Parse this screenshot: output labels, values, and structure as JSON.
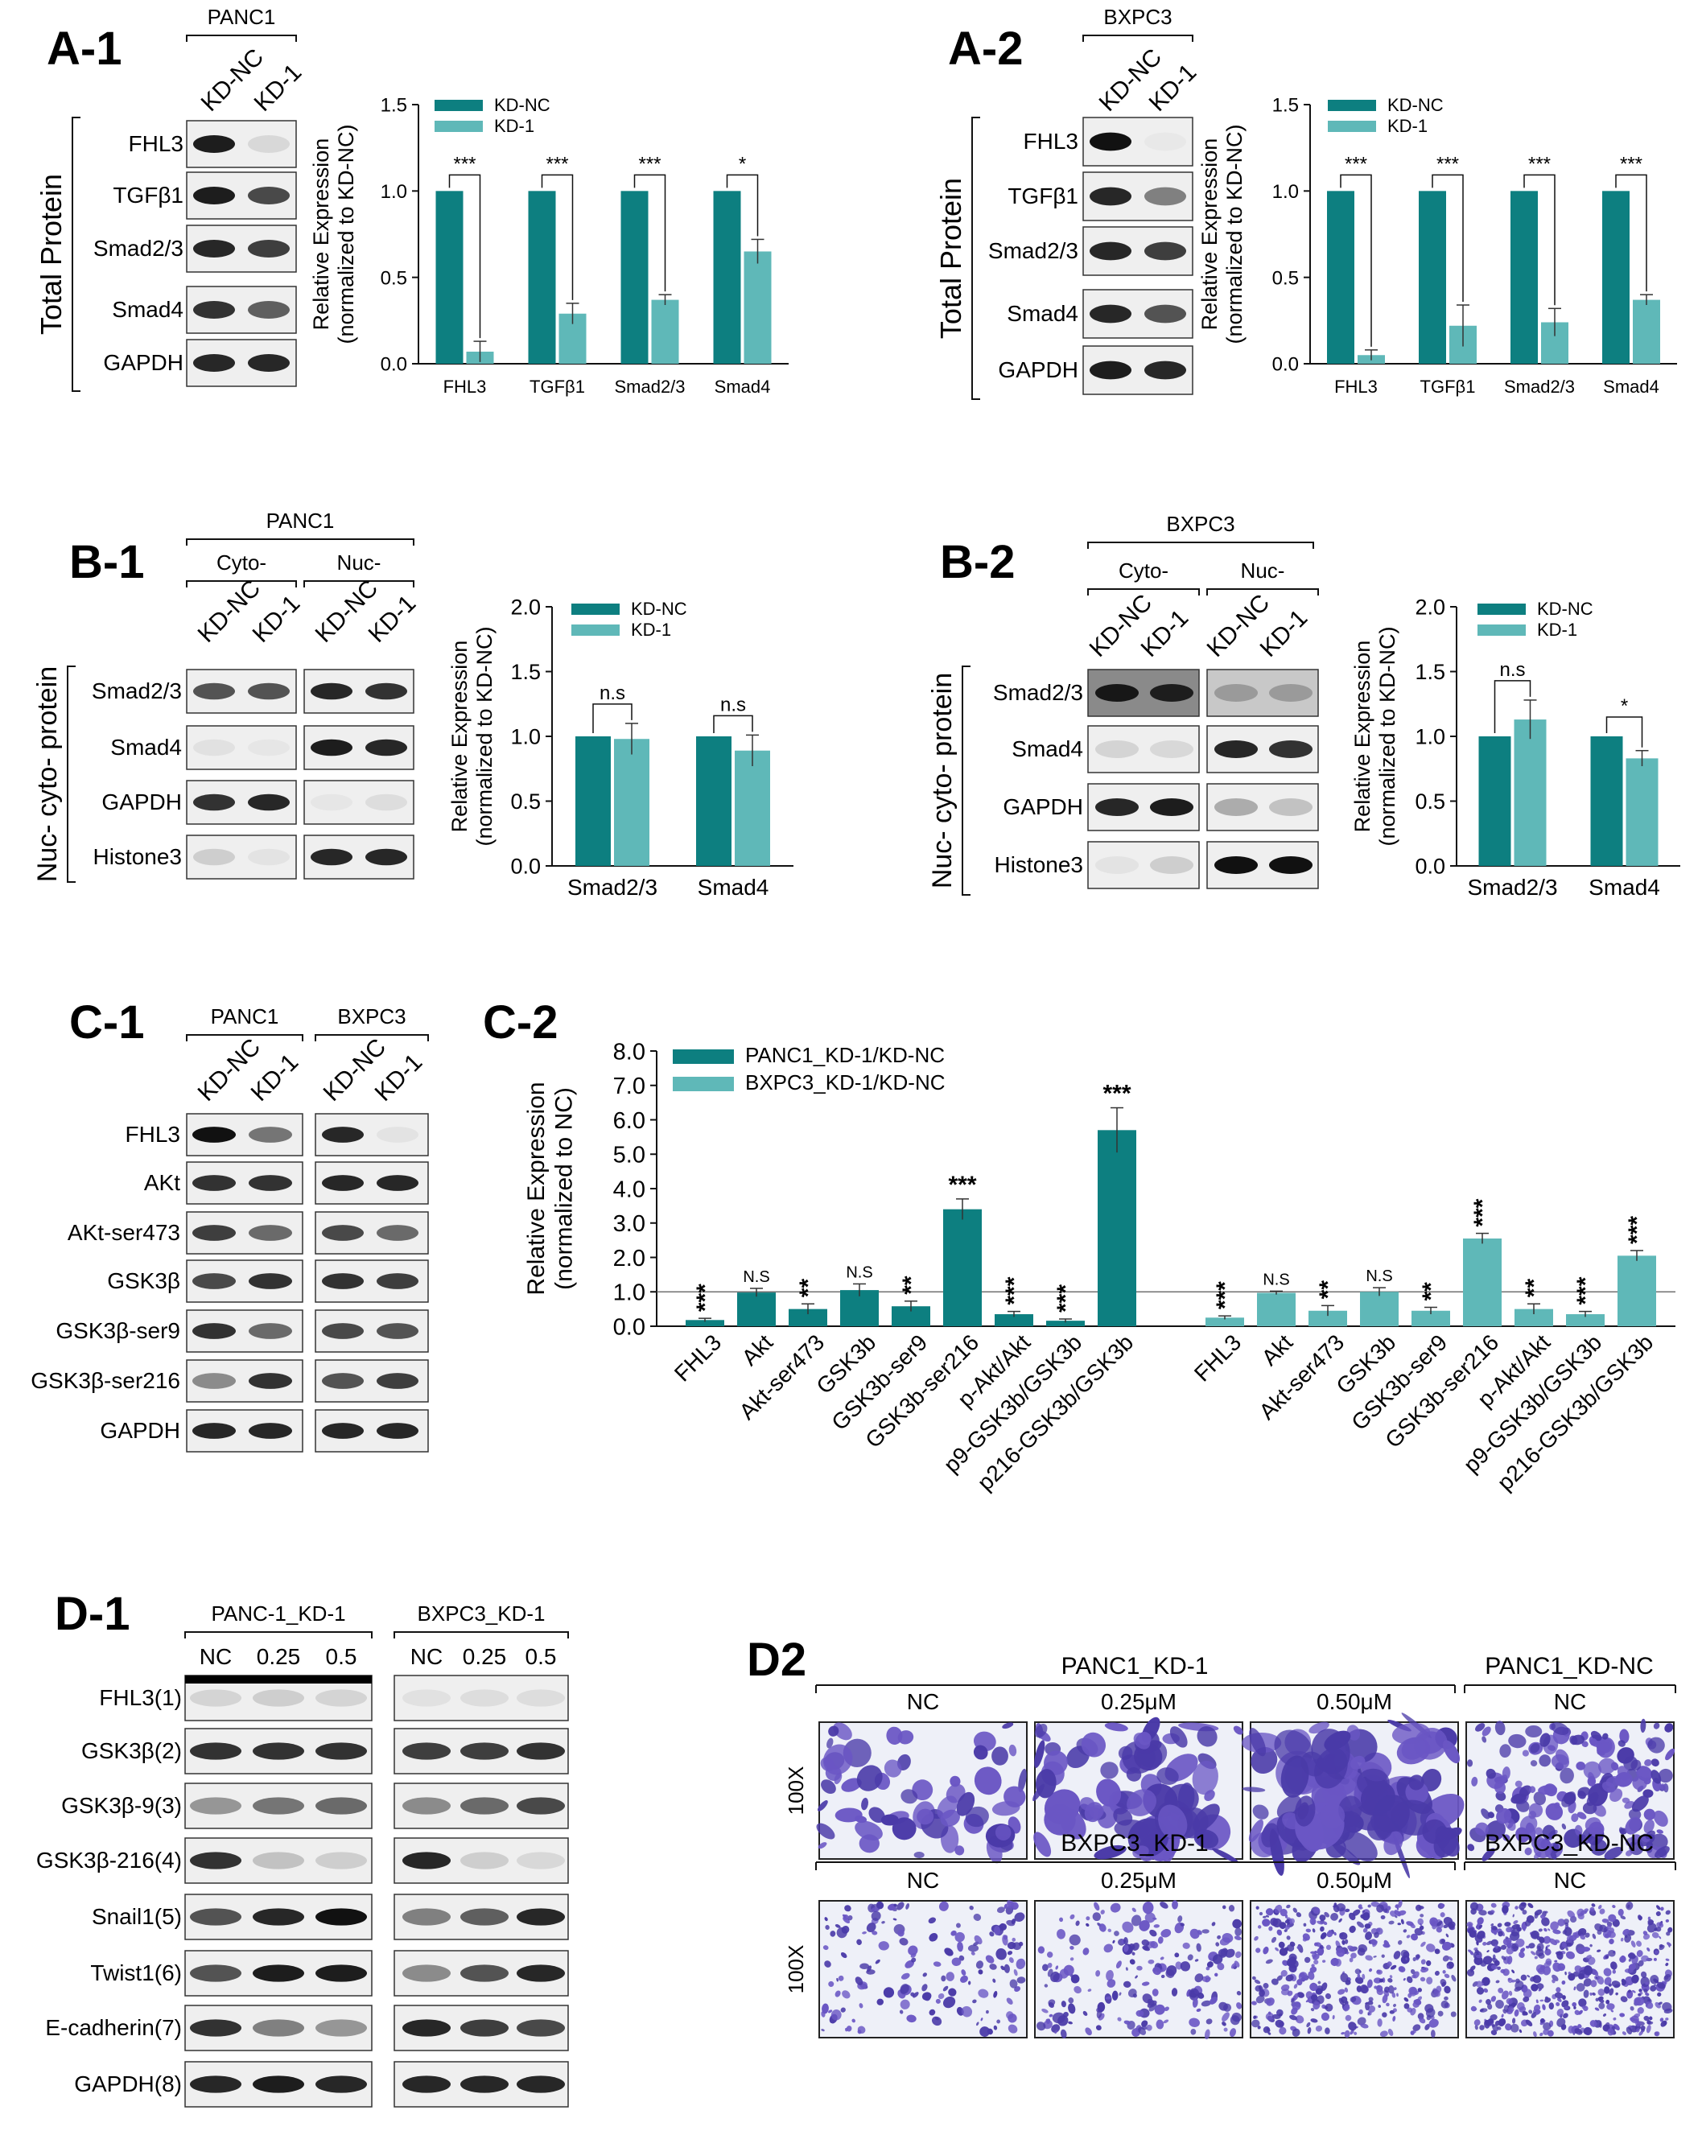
{
  "colors": {
    "teal_dark": "#0d7f80",
    "teal_light": "#5fb8b8"
  },
  "figure": {
    "A1": {
      "label": "A-1",
      "cell_line": "PANC1",
      "lanes": [
        "KD-NC",
        "KD-1"
      ],
      "side_label": "Total Protein",
      "bands": [
        "FHL3",
        "TGFβ1",
        "Smad2/3",
        "Smad4",
        "GAPDH"
      ]
    },
    "A2": {
      "label": "A-2",
      "cell_line": "BXPC3",
      "lanes": [
        "KD-NC",
        "KD-1"
      ],
      "side_label": "Total Protein",
      "bands": [
        "FHL3",
        "TGFβ1",
        "Smad2/3",
        "Smad4",
        "GAPDH"
      ]
    },
    "B1": {
      "label": "B-1",
      "cell_line": "PANC1",
      "fractions": [
        "Cyto-",
        "Nuc-"
      ],
      "lanes": [
        "KD-NC",
        "KD-1",
        "KD-NC",
        "KD-1"
      ],
      "side_label": "Nuc- cyto- protein",
      "bands": [
        "Smad2/3",
        "Smad4",
        "GAPDH",
        "Histone3"
      ]
    },
    "B2": {
      "label": "B-2",
      "cell_line": "BXPC3",
      "fractions": [
        "Cyto-",
        "Nuc-"
      ],
      "lanes": [
        "KD-NC",
        "KD-1",
        "KD-NC",
        "KD-1"
      ],
      "side_label": "Nuc- cyto- protein",
      "bands": [
        "Smad2/3",
        "Smad4",
        "GAPDH",
        "Histone3"
      ]
    },
    "C1": {
      "label": "C-1",
      "cell_lines": [
        "PANC1",
        "BXPC3"
      ],
      "lanes": [
        "KD-NC",
        "KD-1",
        "KD-NC",
        "KD-1"
      ],
      "bands": [
        "FHL3",
        "AKt",
        "AKt-ser473",
        "GSK3β",
        "GSK3β-ser9",
        "GSK3β-ser216",
        "GAPDH"
      ]
    },
    "C2": {
      "label": "C-2"
    },
    "D1": {
      "label": "D-1",
      "groups": [
        "PANC-1_KD-1",
        "BXPC3_KD-1"
      ],
      "lanes": [
        "NC",
        "0.25",
        "0.5",
        "NC",
        "0.25",
        "0.5"
      ],
      "bands": [
        "FHL3(1)",
        "GSK3β(2)",
        "GSK3β-9(3)",
        "GSK3β-216(4)",
        "Snail1(5)",
        "Twist1(6)",
        "E-cadherin(7)",
        "GAPDH(8)"
      ]
    },
    "D2": {
      "label": "D2",
      "magnification": "100X",
      "row1_groups": [
        "PANC1_KD-1",
        "PANC1_KD-NC"
      ],
      "row2_groups": [
        "BXPC3_KD-1",
        "BXPC3_KD-NC"
      ],
      "conditions": [
        "NC",
        "0.25μM",
        "0.50μM",
        "NC"
      ]
    }
  },
  "chart_data": [
    {
      "id": "A1",
      "type": "bar",
      "categories": [
        "FHL3",
        "TGFβ1",
        "Smad2/3",
        "Smad4"
      ],
      "series": [
        {
          "name": "KD-NC",
          "values": [
            1.0,
            1.0,
            1.0,
            1.0
          ],
          "errors": [
            0,
            0,
            0,
            0
          ]
        },
        {
          "name": "KD-1",
          "values": [
            0.07,
            0.29,
            0.37,
            0.65
          ],
          "errors": [
            0.06,
            0.06,
            0.03,
            0.07
          ]
        }
      ],
      "significance": [
        "***",
        "***",
        "***",
        "*"
      ],
      "ylabel": "Relative Expression (normalized to KD-NC)",
      "ylim": [
        0,
        1.5
      ],
      "yticks": [
        "0.0",
        "0.5",
        "1.0",
        "1.5"
      ],
      "legend": "top"
    },
    {
      "id": "A2",
      "type": "bar",
      "categories": [
        "FHL3",
        "TGFβ1",
        "Smad2/3",
        "Smad4"
      ],
      "series": [
        {
          "name": "KD-NC",
          "values": [
            1.0,
            1.0,
            1.0,
            1.0
          ],
          "errors": [
            0,
            0,
            0,
            0
          ]
        },
        {
          "name": "KD-1",
          "values": [
            0.05,
            0.22,
            0.24,
            0.37
          ],
          "errors": [
            0.03,
            0.12,
            0.08,
            0.03
          ]
        }
      ],
      "significance": [
        "***",
        "***",
        "***",
        "***"
      ],
      "ylabel": "Relative Expression (normalized to KD-NC)",
      "ylim": [
        0,
        1.5
      ],
      "yticks": [
        "0.0",
        "0.5",
        "1.0",
        "1.5"
      ],
      "legend": "top"
    },
    {
      "id": "B1",
      "type": "bar",
      "categories": [
        "Smad2/3",
        "Smad4"
      ],
      "series": [
        {
          "name": "KD-NC",
          "values": [
            1.0,
            1.0
          ],
          "errors": [
            0,
            0
          ]
        },
        {
          "name": "KD-1",
          "values": [
            0.98,
            0.89
          ],
          "errors": [
            0.12,
            0.12
          ]
        }
      ],
      "significance": [
        "n.s",
        "n.s"
      ],
      "ylabel": "Relative Expression (normalized to KD-NC)",
      "ylim": [
        0,
        2.0
      ],
      "yticks": [
        "0.0",
        "0.5",
        "1.0",
        "1.5",
        "2.0"
      ],
      "legend": "top"
    },
    {
      "id": "B2",
      "type": "bar",
      "categories": [
        "Smad2/3",
        "Smad4"
      ],
      "series": [
        {
          "name": "KD-NC",
          "values": [
            1.0,
            1.0
          ],
          "errors": [
            0,
            0
          ]
        },
        {
          "name": "KD-1",
          "values": [
            1.13,
            0.83
          ],
          "errors": [
            0.15,
            0.06
          ]
        }
      ],
      "significance": [
        "n.s",
        "*"
      ],
      "ylabel": "Relative Expression (normalized to KD-NC)",
      "ylim": [
        0,
        2.0
      ],
      "yticks": [
        "0.0",
        "0.5",
        "1.0",
        "1.5",
        "2.0"
      ],
      "legend": "top"
    },
    {
      "id": "C2",
      "type": "bar",
      "categories": [
        "FHL3",
        "Akt",
        "Akt-ser473",
        "GSK3b",
        "GSK3b-ser9",
        "GSK3b-ser216",
        "p-Akt/Akt",
        "p9-GSK3b/GSK3b",
        "p216-GSK3b/GSK3b"
      ],
      "series": [
        {
          "name": "PANC1_KD-1/KD-NC",
          "values": [
            0.18,
            0.98,
            0.5,
            1.05,
            0.58,
            3.4,
            0.35,
            0.16,
            5.7
          ],
          "errors": [
            0.05,
            0.12,
            0.15,
            0.18,
            0.15,
            0.3,
            0.08,
            0.05,
            0.65
          ],
          "significance": [
            "***",
            "N.S",
            "**",
            "N.S",
            "**",
            "***",
            "***",
            "***",
            "***"
          ]
        },
        {
          "name": "BXPC3_KD-1/KD-NC",
          "values": [
            0.25,
            0.97,
            0.45,
            1.0,
            0.45,
            2.55,
            0.5,
            0.35,
            2.05
          ],
          "errors": [
            0.05,
            0.05,
            0.15,
            0.12,
            0.1,
            0.15,
            0.15,
            0.08,
            0.15
          ],
          "significance": [
            "***",
            "N.S",
            "**",
            "N.S",
            "**",
            "***",
            "**",
            "***",
            "***"
          ]
        }
      ],
      "reference_line": 1.0,
      "ylabel": "Relative Expression (normalized to NC)",
      "ylim": [
        0,
        8.0
      ],
      "yticks": [
        "0.0",
        "1.0",
        "2.0",
        "3.0",
        "4.0",
        "5.0",
        "6.0",
        "7.0",
        "8.0"
      ],
      "legend": "top-left"
    }
  ]
}
